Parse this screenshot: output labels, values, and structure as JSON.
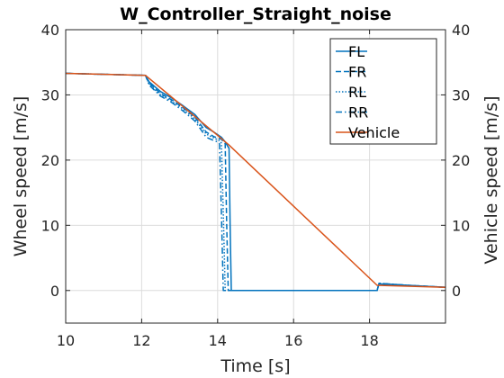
{
  "chart_data": {
    "type": "line",
    "title": "W_Controller_Straight_noise",
    "xlabel": "Time [s]",
    "ylabel_left": "Wheel speed [m/s]",
    "ylabel_right": "Vehicle speed [m/s]",
    "xlim": [
      10,
      20
    ],
    "ylim": [
      -5,
      40
    ],
    "xticks": [
      10,
      12,
      14,
      16,
      18
    ],
    "yticks": [
      0,
      10,
      20,
      30,
      40
    ],
    "grid": true,
    "legend_position": "top-right",
    "series": [
      {
        "name": "FL",
        "color": "#0072BD",
        "style": "solid",
        "x": [
          10.0,
          12.1,
          12.2,
          12.5,
          12.8,
          13.1,
          13.4,
          13.7,
          13.9,
          14.1,
          14.2,
          14.25,
          14.3,
          14.33,
          14.36,
          18.2,
          18.25,
          19.0,
          20.0
        ],
        "y": [
          33.3,
          33.0,
          32.0,
          30.5,
          29.5,
          28.3,
          27.0,
          25.0,
          24.3,
          23.5,
          22.8,
          22.3,
          21.8,
          10.0,
          0.0,
          0.0,
          1.0,
          0.8,
          0.5
        ]
      },
      {
        "name": "FR",
        "color": "#0072BD",
        "style": "dashed",
        "x": [
          10.0,
          12.1,
          12.2,
          12.5,
          12.8,
          13.1,
          13.4,
          13.7,
          13.9,
          14.1,
          14.15,
          14.2,
          14.24,
          14.28,
          18.2,
          18.25,
          19.0,
          20.0
        ],
        "y": [
          33.3,
          33.0,
          31.8,
          30.2,
          29.2,
          28.0,
          26.6,
          24.3,
          23.6,
          23.2,
          22.8,
          22.5,
          10.0,
          0.0,
          0.0,
          1.1,
          0.8,
          0.5
        ]
      },
      {
        "name": "RL",
        "color": "#0072BD",
        "style": "dotted",
        "x": [
          10.0,
          12.1,
          12.2,
          12.5,
          12.8,
          13.1,
          13.4,
          13.7,
          13.9,
          14.05,
          14.1,
          14.15,
          14.2,
          18.2,
          18.25,
          19.0,
          20.0
        ],
        "y": [
          33.3,
          33.0,
          31.6,
          30.0,
          29.0,
          27.8,
          26.3,
          24.0,
          23.4,
          23.0,
          22.6,
          12.0,
          0.0,
          0.0,
          1.1,
          0.8,
          0.5
        ]
      },
      {
        "name": "RR",
        "color": "#0072BD",
        "style": "dashdot",
        "x": [
          10.0,
          12.1,
          12.2,
          12.5,
          12.8,
          13.1,
          13.4,
          13.7,
          13.9,
          14.0,
          14.05,
          14.1,
          14.15,
          18.2,
          18.25,
          19.0,
          20.0
        ],
        "y": [
          33.3,
          33.0,
          31.5,
          29.8,
          28.8,
          27.5,
          26.0,
          23.5,
          23.0,
          22.8,
          22.5,
          12.0,
          0.0,
          0.0,
          1.1,
          0.8,
          0.5
        ]
      },
      {
        "name": "Vehicle",
        "color": "#D95319",
        "style": "solid",
        "x": [
          10.0,
          12.1,
          14.0,
          14.3,
          18.2,
          20.0
        ],
        "y": [
          33.3,
          33.0,
          23.8,
          22.3,
          0.8,
          0.5
        ]
      }
    ]
  }
}
